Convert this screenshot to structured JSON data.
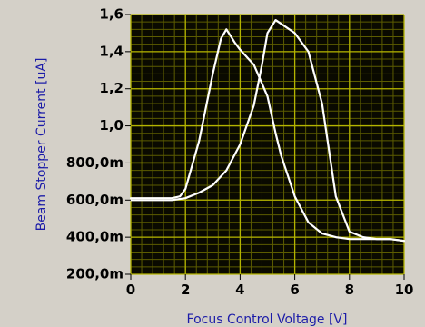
{
  "chart_data": {
    "type": "line",
    "xlabel": "Focus Control Voltage [V]",
    "ylabel": "Beam Stopper Current [uA]",
    "xlim": [
      0,
      10
    ],
    "ylim": [
      0.2,
      1.6
    ],
    "x_ticks": [
      0,
      2,
      4,
      6,
      8,
      10
    ],
    "x_tick_labels": [
      "0",
      "2",
      "4",
      "6",
      "8",
      "10"
    ],
    "y_ticks": [
      0.2,
      0.4,
      0.6,
      0.8,
      1.0,
      1.2,
      1.4,
      1.6
    ],
    "y_tick_labels": [
      "200,0m",
      "400,0m",
      "600,0m",
      "800,0m",
      "1,0",
      "1,2",
      "1,4",
      "1,6"
    ],
    "grid": true,
    "colors": {
      "plot_background": "#0a0a00",
      "grid_major": "#b3b300",
      "grid_minor": "#5c5c00",
      "trace": "#ffffff",
      "axis_title": "#1c1ca8",
      "frame": "#d4d0c8"
    },
    "series": [
      {
        "x": [
          0,
          0.5,
          1.0,
          1.5,
          1.8,
          2.0,
          2.5,
          3.0,
          3.3,
          3.5,
          3.8,
          4.0,
          4.5,
          5.0,
          5.3,
          5.5,
          6.0,
          6.5,
          7.0,
          7.5,
          8.0,
          8.5,
          9.0,
          9.5,
          10.0
        ],
        "y": [
          0.61,
          0.61,
          0.61,
          0.61,
          0.62,
          0.66,
          0.92,
          1.28,
          1.47,
          1.52,
          1.45,
          1.41,
          1.33,
          1.16,
          0.96,
          0.84,
          0.62,
          0.48,
          0.42,
          0.4,
          0.39,
          0.39,
          0.39,
          0.39,
          0.38
        ]
      },
      {
        "x": [
          0,
          0.5,
          1.0,
          1.5,
          2.0,
          2.5,
          3.0,
          3.5,
          4.0,
          4.5,
          4.8,
          5.0,
          5.3,
          5.5,
          6.0,
          6.5,
          7.0,
          7.5,
          8.0,
          8.5,
          9.0,
          9.5,
          10.0
        ],
        "y": [
          0.6,
          0.6,
          0.6,
          0.6,
          0.61,
          0.64,
          0.68,
          0.76,
          0.9,
          1.11,
          1.33,
          1.5,
          1.57,
          1.55,
          1.5,
          1.4,
          1.12,
          0.62,
          0.43,
          0.4,
          0.39,
          0.39,
          0.38
        ]
      }
    ]
  }
}
